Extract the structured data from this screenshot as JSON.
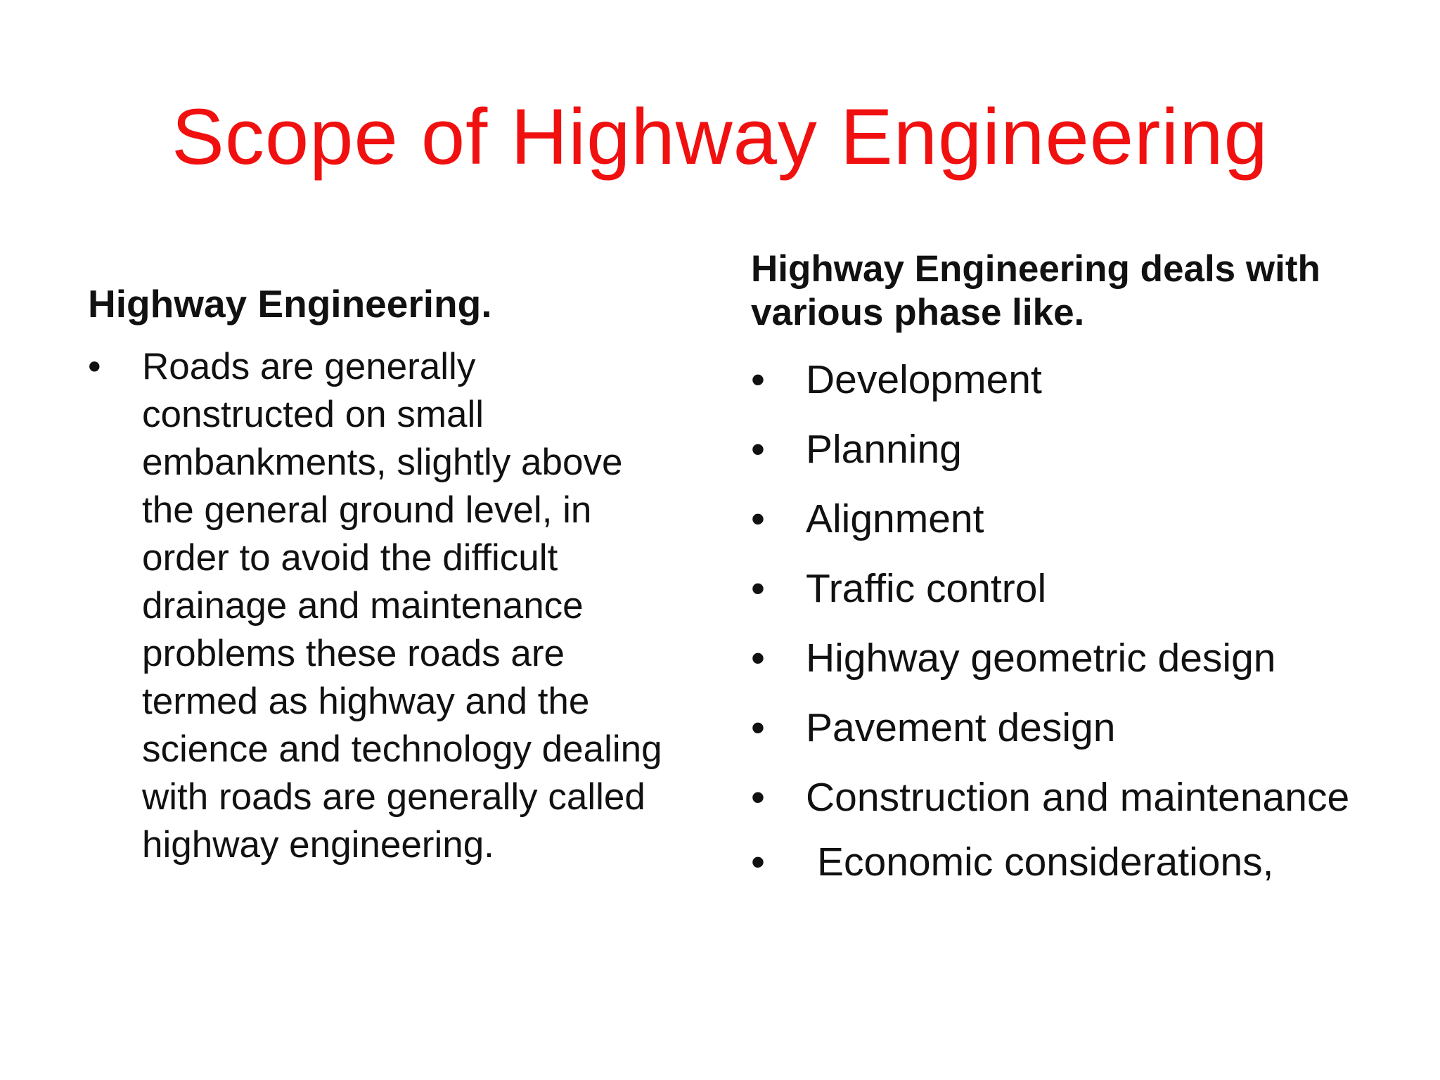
{
  "slide": {
    "title": "Scope of Highway Engineering",
    "title_color": "#f01010",
    "bullet_glyph": "•",
    "left": {
      "heading": "Highway Engineering.",
      "bullets": [
        "Roads are generally constructed on small embankments, slightly above the general ground level, in order to avoid the difficult drainage and maintenance problems these roads are termed as highway and the science and technology dealing with roads are generally called highway engineering."
      ]
    },
    "right": {
      "heading": "Highway Engineering deals with various phase like.",
      "bullets": [
        "Development",
        "Planning",
        "Alignment",
        "Traffic control",
        "Highway geometric design",
        "Pavement design",
        "Construction and maintenance",
        "Economic considerations,"
      ]
    }
  }
}
